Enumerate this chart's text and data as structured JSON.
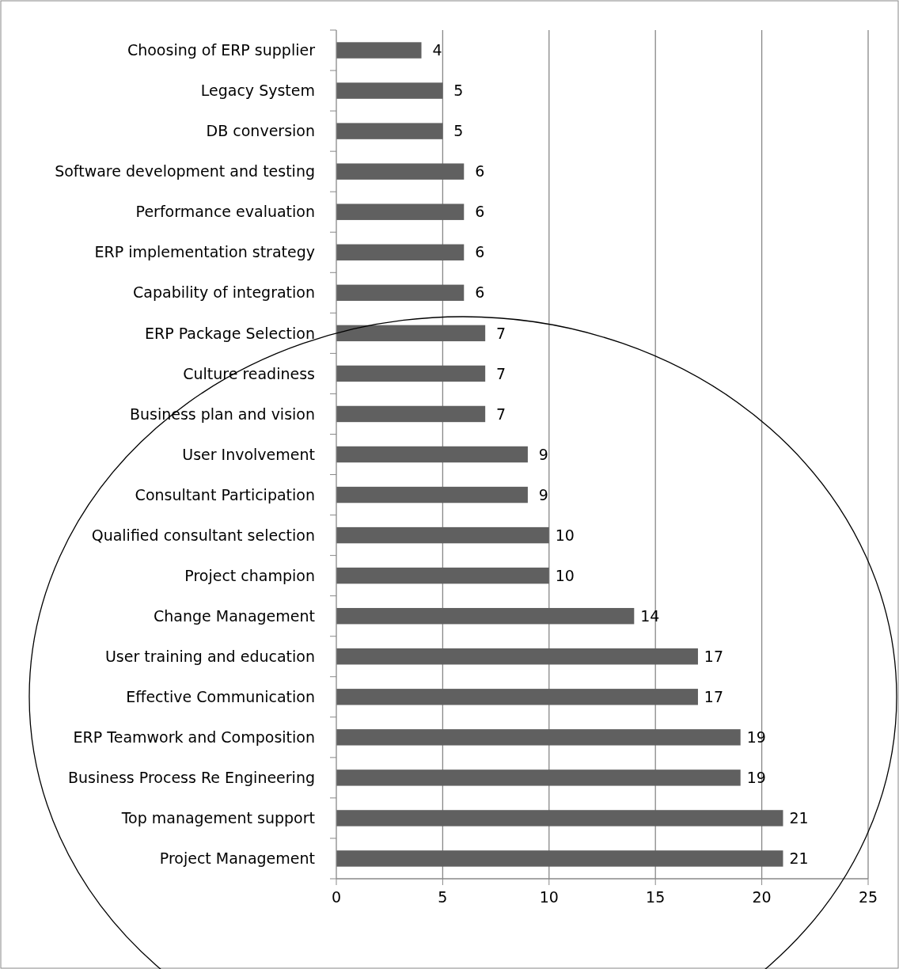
{
  "chart_data": {
    "type": "bar",
    "orientation": "horizontal",
    "categories": [
      "Choosing of ERP supplier",
      "Legacy System",
      "DB conversion",
      "Software development and testing",
      "Performance evaluation",
      "ERP implementation strategy",
      "Capability of integration",
      "ERP Package Selection",
      "Culture readiness",
      "Business plan and vision",
      "User Involvement",
      "Consultant Participation",
      "Qualified consultant selection",
      "Project champion",
      "Change Management",
      "User training and education",
      "Effective Communication",
      "ERP Teamwork and Composition",
      "Business Process Re Engineering",
      "Top management support",
      "Project Management"
    ],
    "values": [
      4,
      5,
      5,
      6,
      6,
      6,
      6,
      7,
      7,
      7,
      9,
      9,
      10,
      10,
      14,
      17,
      17,
      19,
      19,
      21,
      21
    ],
    "color": "#606060",
    "xlim": [
      0,
      25
    ],
    "xticks": [
      0,
      5,
      10,
      15,
      20,
      25
    ],
    "grid": "x",
    "data_labels": true
  }
}
